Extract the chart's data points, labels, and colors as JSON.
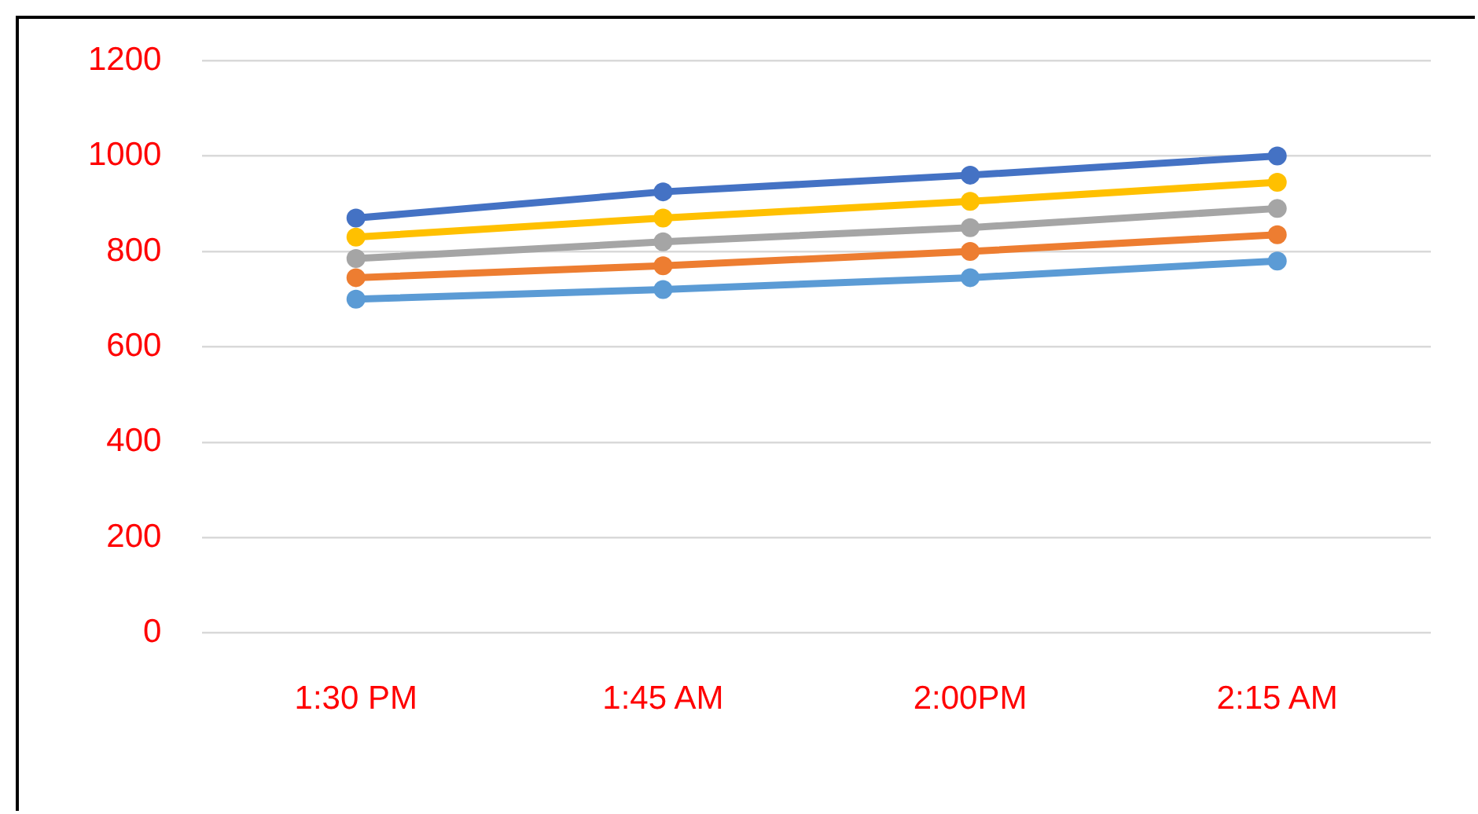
{
  "chart_data": {
    "type": "line",
    "categories": [
      "1:30 PM",
      "1:45 AM",
      "2:00PM",
      "2:15 AM"
    ],
    "series": [
      {
        "color": "#4472c4",
        "values": [
          870,
          925,
          960,
          1000
        ]
      },
      {
        "color": "#ffc000",
        "values": [
          830,
          870,
          905,
          945
        ]
      },
      {
        "color": "#a5a5a5",
        "values": [
          785,
          820,
          850,
          890
        ]
      },
      {
        "color": "#ed7d31",
        "values": [
          745,
          770,
          800,
          835
        ]
      },
      {
        "color": "#5b9bd5",
        "values": [
          700,
          720,
          745,
          780
        ]
      }
    ],
    "ylim": [
      0,
      1200
    ],
    "yticks": [
      0,
      200,
      400,
      600,
      800,
      1000,
      1200
    ],
    "grid": "y",
    "legend": false,
    "marker": "circle",
    "line_style": "solid"
  }
}
